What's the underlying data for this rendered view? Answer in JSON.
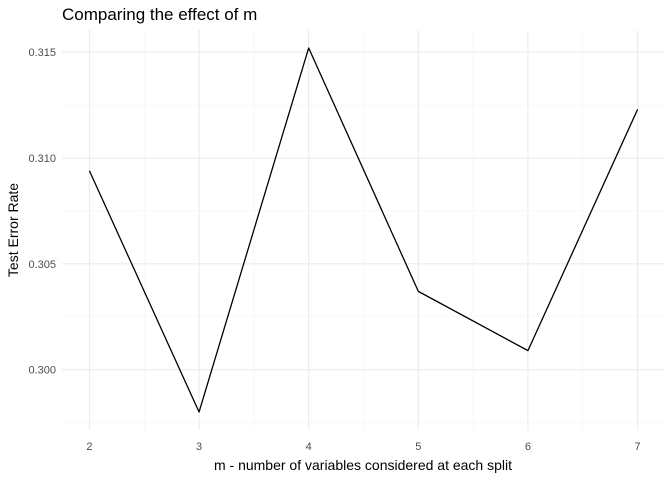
{
  "chart_data": {
    "type": "line",
    "title": "Comparing the effect of m",
    "xlabel": "m - number of variables considered at each split",
    "ylabel": "Test Error Rate",
    "x": [
      2,
      3,
      4,
      5,
      6,
      7
    ],
    "series": [
      {
        "values": [
          0.3094,
          0.298,
          0.3152,
          0.3037,
          0.3009,
          0.3123
        ]
      }
    ],
    "xlim": [
      1.75,
      7.25
    ],
    "ylim": [
      0.29715,
      0.31605
    ],
    "x_ticks": [
      2,
      3,
      4,
      5,
      6,
      7
    ],
    "y_ticks": [
      0.3,
      0.305,
      0.31,
      0.315
    ],
    "x_tick_labels": [
      "2",
      "3",
      "4",
      "5",
      "6",
      "7"
    ],
    "y_tick_labels": [
      "0.300",
      "0.305",
      "0.310",
      "0.315"
    ],
    "grid": true,
    "line_color": "#000000"
  }
}
